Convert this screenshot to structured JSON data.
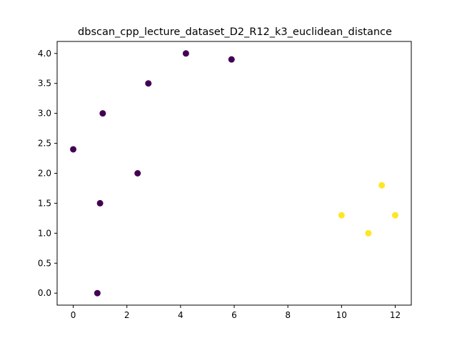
{
  "chart_data": {
    "type": "scatter",
    "title": "dbscan_cpp_lecture_dataset_D2_R12_k3_euclidean_distance",
    "xlabel": "",
    "ylabel": "",
    "xlim": [
      -0.6,
      12.6
    ],
    "ylim": [
      -0.2,
      4.2
    ],
    "xticks": [
      0,
      2,
      4,
      6,
      8,
      10,
      12
    ],
    "xtick_labels": [
      "0",
      "2",
      "4",
      "6",
      "8",
      "10",
      "12"
    ],
    "yticks": [
      0.0,
      0.5,
      1.0,
      1.5,
      2.0,
      2.5,
      3.0,
      3.5,
      4.0
    ],
    "ytick_labels": [
      "0.0",
      "0.5",
      "1.0",
      "1.5",
      "2.0",
      "2.5",
      "3.0",
      "3.5",
      "4.0"
    ],
    "grid": false,
    "cluster_colors": {
      "0": "#440154",
      "1": "#fde725"
    },
    "points": [
      {
        "x": 0.0,
        "y": 2.4,
        "cluster": 0
      },
      {
        "x": 1.1,
        "y": 3.0,
        "cluster": 0
      },
      {
        "x": 2.8,
        "y": 3.5,
        "cluster": 0
      },
      {
        "x": 4.2,
        "y": 4.0,
        "cluster": 0
      },
      {
        "x": 5.9,
        "y": 3.9,
        "cluster": 0
      },
      {
        "x": 2.4,
        "y": 2.0,
        "cluster": 0
      },
      {
        "x": 1.0,
        "y": 1.5,
        "cluster": 0
      },
      {
        "x": 0.9,
        "y": 0.0,
        "cluster": 0
      },
      {
        "x": 10.0,
        "y": 1.3,
        "cluster": 1
      },
      {
        "x": 11.0,
        "y": 1.0,
        "cluster": 1
      },
      {
        "x": 11.5,
        "y": 1.8,
        "cluster": 1
      },
      {
        "x": 12.0,
        "y": 1.3,
        "cluster": 1
      }
    ]
  }
}
